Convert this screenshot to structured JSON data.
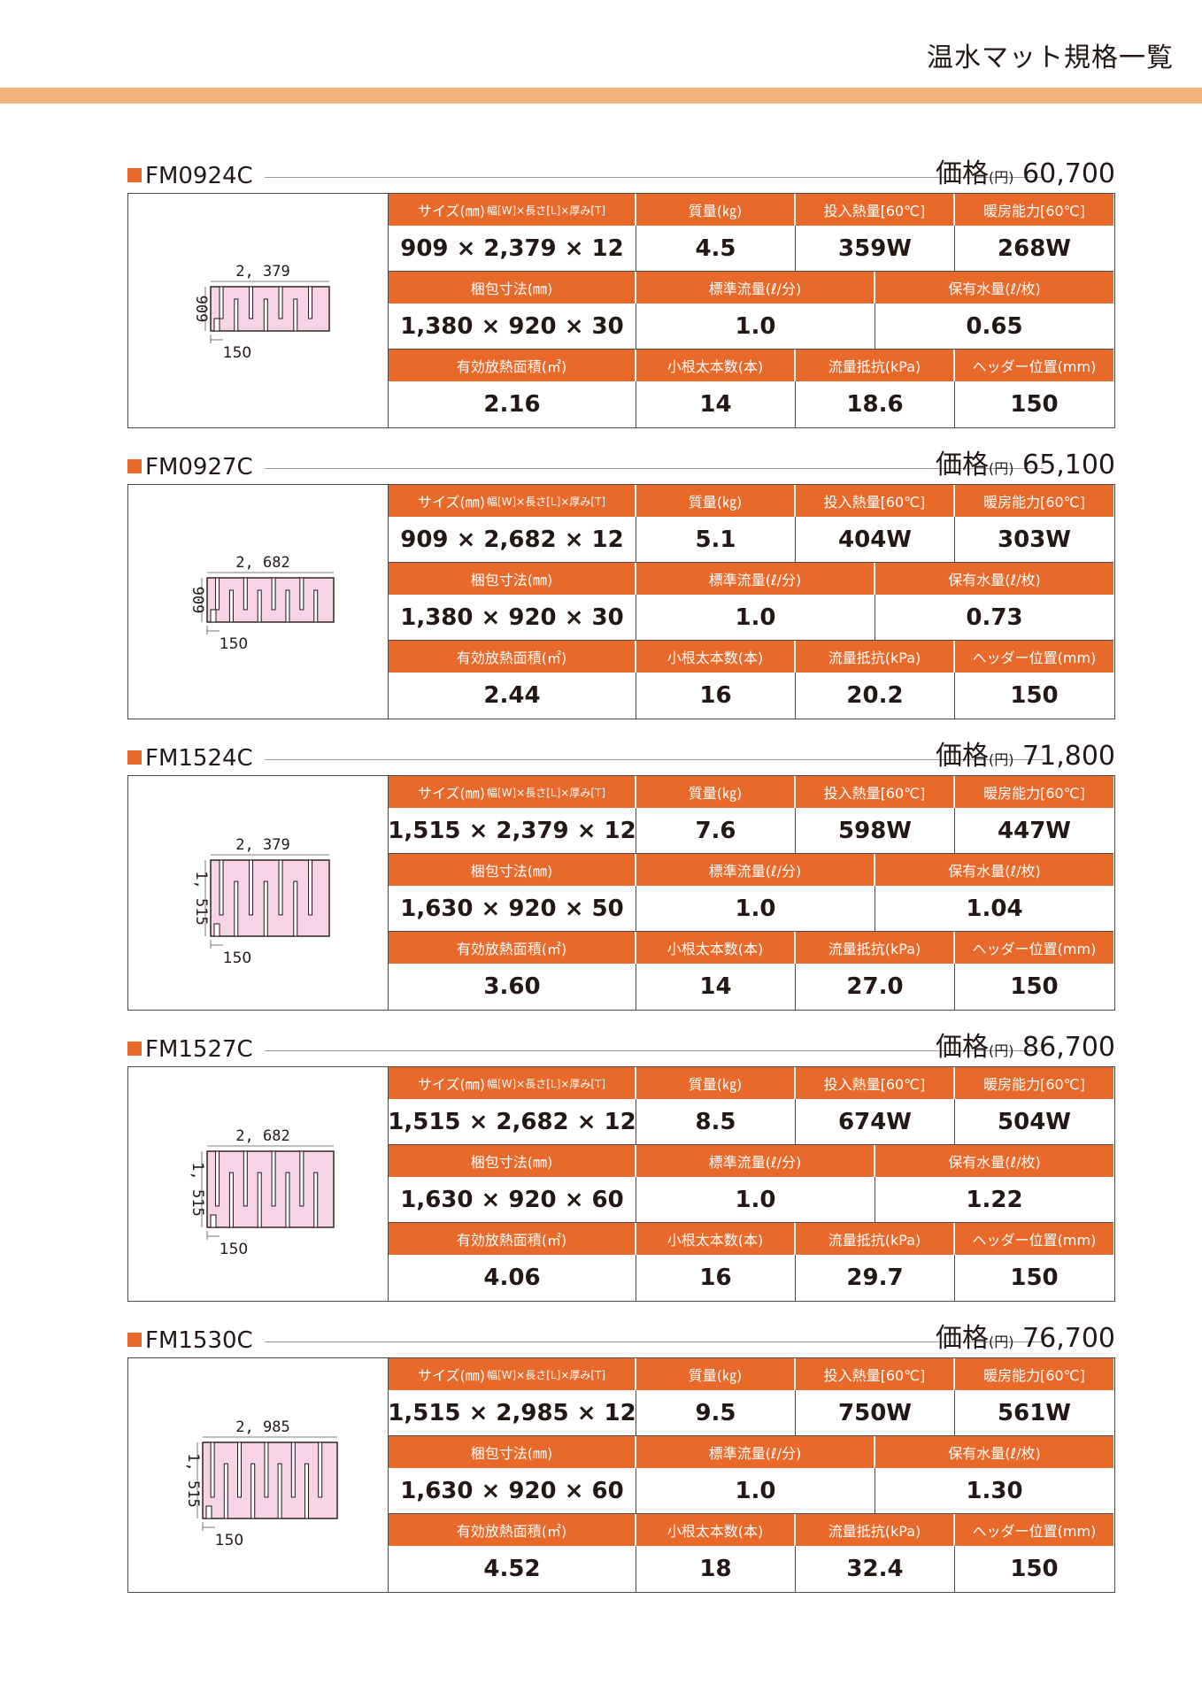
{
  "page": {
    "title": "温水マット規格一覧"
  },
  "labels": {
    "size": "サイズ(㎜)",
    "size_sub": "幅[W]×長さ[L]×厚み[T]",
    "mass": "質量(㎏)",
    "heat_input": "投入熱量[60℃]",
    "heating_capacity": "暖房能力[60℃]",
    "packing": "梱包寸法(㎜)",
    "flow": "標準流量(ℓ/分)",
    "water": "保有水量(ℓ/枚)",
    "area": "有効放熱面積(㎡)",
    "branches": "小根太本数(本)",
    "resistance": "流量抵抗(kPa)",
    "header_pos": "ヘッダー位置(mm)",
    "price": "価格",
    "price_unit": "(円)"
  },
  "products": [
    {
      "code": "FM0924C",
      "price": "60,700",
      "size": "909 × 2,379 × 12",
      "mass": "4.5",
      "heat_input": "359W",
      "heating_capacity": "268W",
      "packing": "1,380 × 920 × 30",
      "flow": "1.0",
      "water": "0.65",
      "area": "2.16",
      "branches": "14",
      "resistance": "18.6",
      "header_pos": "150",
      "dim_length": "2, 379",
      "dim_width": "909",
      "dim_header": "150",
      "slots": 7
    },
    {
      "code": "FM0927C",
      "price": "65,100",
      "size": "909 × 2,682 × 12",
      "mass": "5.1",
      "heat_input": "404W",
      "heating_capacity": "303W",
      "packing": "1,380 × 920 × 30",
      "flow": "1.0",
      "water": "0.73",
      "area": "2.44",
      "branches": "16",
      "resistance": "20.2",
      "header_pos": "150",
      "dim_length": "2, 682",
      "dim_width": "909",
      "dim_header": "150",
      "slots": 8
    },
    {
      "code": "FM1524C",
      "price": "71,800",
      "size": "1,515 × 2,379 × 12",
      "mass": "7.6",
      "heat_input": "598W",
      "heating_capacity": "447W",
      "packing": "1,630 × 920 × 50",
      "flow": "1.0",
      "water": "1.04",
      "area": "3.60",
      "branches": "14",
      "resistance": "27.0",
      "header_pos": "150",
      "dim_length": "2, 379",
      "dim_width": "1, 515",
      "dim_header": "150",
      "slots": 7
    },
    {
      "code": "FM1527C",
      "price": "86,700",
      "size": "1,515 × 2,682 × 12",
      "mass": "8.5",
      "heat_input": "674W",
      "heating_capacity": "504W",
      "packing": "1,630 × 920 × 60",
      "flow": "1.0",
      "water": "1.22",
      "area": "4.06",
      "branches": "16",
      "resistance": "29.7",
      "header_pos": "150",
      "dim_length": "2, 682",
      "dim_width": "1, 515",
      "dim_header": "150",
      "slots": 8
    },
    {
      "code": "FM1530C",
      "price": "76,700",
      "size": "1,515 × 2,985 × 12",
      "mass": "9.5",
      "heat_input": "750W",
      "heating_capacity": "561W",
      "packing": "1,630 × 920 × 60",
      "flow": "1.0",
      "water": "1.30",
      "area": "4.52",
      "branches": "18",
      "resistance": "32.4",
      "header_pos": "150",
      "dim_length": "2, 985",
      "dim_width": "1, 515",
      "dim_header": "150",
      "slots": 9
    }
  ]
}
